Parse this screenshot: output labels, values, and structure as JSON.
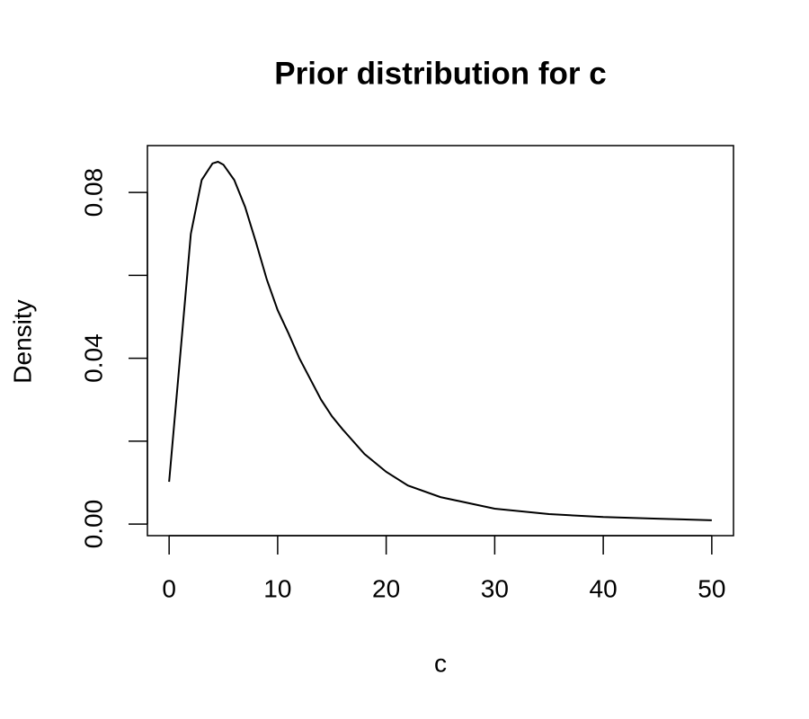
{
  "chart_data": {
    "type": "line",
    "title": "Prior distribution for c",
    "x_label": "c",
    "y_label": "Density",
    "x": [
      0,
      1,
      2,
      3,
      4,
      4.5,
      5,
      6,
      7,
      8,
      9,
      10,
      11,
      12,
      13,
      14,
      15,
      16,
      18,
      20,
      22,
      25,
      30,
      35,
      40,
      45,
      50
    ],
    "series": [
      {
        "color": "#000000",
        "values": [
          0.0102,
          0.04,
          0.07,
          0.083,
          0.087,
          0.0874,
          0.0867,
          0.083,
          0.0765,
          0.068,
          0.059,
          0.0516,
          0.046,
          0.04,
          0.035,
          0.03,
          0.026,
          0.0228,
          0.0169,
          0.0126,
          0.0093,
          0.0065,
          0.0037,
          0.0024,
          0.0017,
          0.0013,
          0.0009
        ]
      }
    ],
    "xlim": [
      -2,
      52
    ],
    "ylim": [
      -0.0028,
      0.0913
    ],
    "xticks": [
      0,
      10,
      20,
      30,
      40,
      50
    ],
    "yticks": [
      {
        "value": 0,
        "label": "0.00"
      },
      {
        "value": 0.02,
        "label": null
      },
      {
        "value": 0.04,
        "label": "0.04"
      },
      {
        "value": 0.06,
        "label": null
      },
      {
        "value": 0.08,
        "label": "0.08"
      }
    ]
  }
}
